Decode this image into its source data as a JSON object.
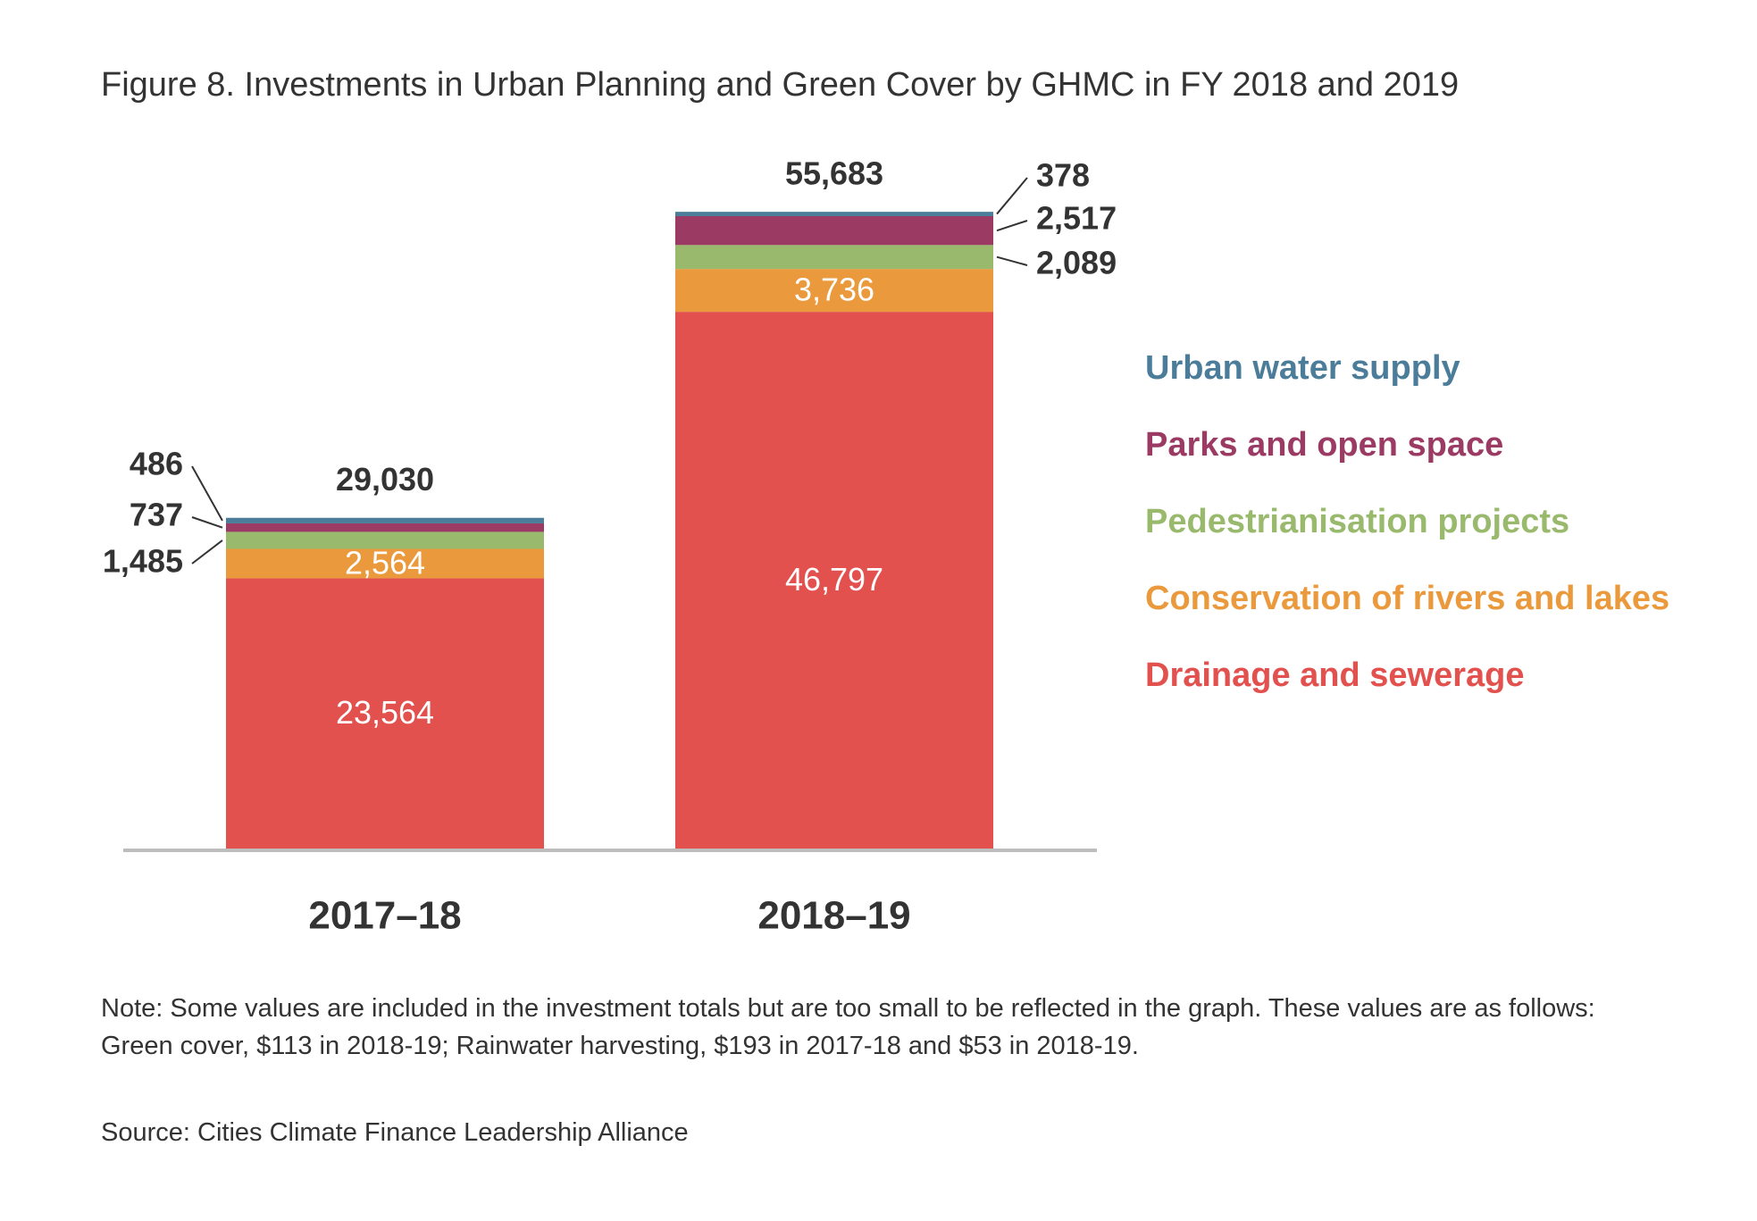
{
  "title": "Figure 8. Investments in Urban Planning and Green Cover by GHMC in FY 2018 and 2019",
  "note": "Note: Some values are included in the investment totals but are too small to be reflected in the graph. These values are as follows: Green cover, $113 in 2018-19; Rainwater harvesting, $193 in 2017-18 and $53 in 2018-19.",
  "source": "Source: Cities Climate Finance Leadership Alliance",
  "chart_data": {
    "type": "bar",
    "stacked": true,
    "categories": [
      "2017–18",
      "2018–19"
    ],
    "totals": [
      29030,
      55683
    ],
    "total_labels": [
      "29,030",
      "55,683"
    ],
    "series": [
      {
        "name": "Drainage and sewerage",
        "values": [
          23564,
          46797
        ],
        "labels": [
          "23,564",
          "46,797"
        ],
        "color": "#e2514e"
      },
      {
        "name": "Conservation of rivers and lakes",
        "values": [
          2564,
          3736
        ],
        "labels": [
          "2,564",
          "3,736"
        ],
        "color": "#ea9a3c"
      },
      {
        "name": "Pedestrianisation projects",
        "values": [
          1485,
          2089
        ],
        "labels": [
          "1,485",
          "2,089"
        ],
        "color": "#99b96d"
      },
      {
        "name": "Parks and open space",
        "values": [
          737,
          2517
        ],
        "labels": [
          "737",
          "2,517"
        ],
        "color": "#9b3b64"
      },
      {
        "name": "Urban water supply",
        "values": [
          486,
          378
        ],
        "labels": [
          "486",
          "378"
        ],
        "color": "#4b7d9b"
      }
    ],
    "legend_order": [
      "Urban water supply",
      "Parks and open space",
      "Pedestrianisation projects",
      "Conservation of rivers and lakes",
      "Drainage and sewerage"
    ],
    "legend_position": "right",
    "grid": false,
    "ylim": [
      0,
      72000
    ]
  }
}
